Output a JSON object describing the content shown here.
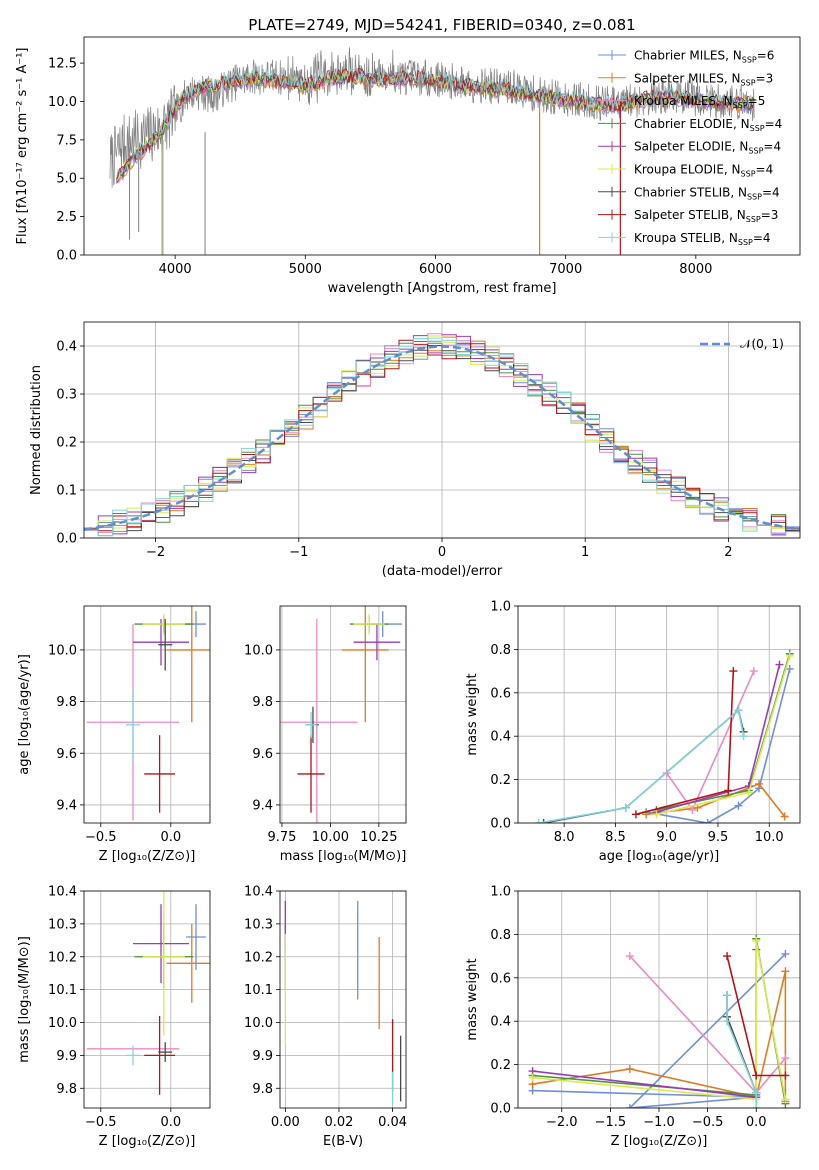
{
  "colors": {
    "Chabrier MILES": "#6f8fd8",
    "Salpeter MILES": "#e07b22",
    "Kroupa MILES": "#ec8ac7",
    "Chabrier ELODIE": "#4d9140",
    "Salpeter ELODIE": "#9b3cb4",
    "Kroupa ELODIE": "#d8eb4c",
    "Chabrier STELIB": "#4b4b4b",
    "Salpeter STELIB": "#b31515",
    "Kroupa STELIB": "#7fd6dc",
    "normal": "#5b8fd6"
  },
  "chart_data": [
    {
      "id": "spectrum",
      "type": "line",
      "title": "PLATE=2749, MJD=54241, FIBERID=0340, z=0.081",
      "xlabel": "wavelength [Angstrom, rest frame]",
      "ylabel": "Flux [fλ10⁻¹⁷ erg cm⁻² s⁻¹ A⁻¹]",
      "xlim": [
        3300,
        8800
      ],
      "ylim": [
        0,
        14.2
      ],
      "xticks": [
        4000,
        5000,
        6000,
        7000,
        8000
      ],
      "yticks": [
        0.0,
        2.5,
        5.0,
        7.5,
        10.0,
        12.5
      ],
      "legend": [
        {
          "model": "Chabrier MILES",
          "n": "6"
        },
        {
          "model": "Salpeter MILES",
          "n": "3"
        },
        {
          "model": "Kroupa MILES",
          "n": "5"
        },
        {
          "model": "Chabrier ELODIE",
          "n": "4"
        },
        {
          "model": "Salpeter ELODIE",
          "n": "4"
        },
        {
          "model": "Kroupa ELODIE",
          "n": "4"
        },
        {
          "model": "Chabrier STELIB",
          "n": "4"
        },
        {
          "model": "Salpeter STELIB",
          "n": "3"
        },
        {
          "model": "Kroupa STELIB",
          "n": "4"
        }
      ],
      "data_continuum": [
        [
          3500,
          6.0
        ],
        [
          3600,
          7.2
        ],
        [
          3700,
          7.5
        ],
        [
          3800,
          7.8
        ],
        [
          3900,
          8.2
        ],
        [
          4000,
          9.2
        ],
        [
          4100,
          10.6
        ],
        [
          4200,
          10.6
        ],
        [
          4300,
          10.4
        ],
        [
          4400,
          11.0
        ],
        [
          4500,
          11.4
        ],
        [
          4600,
          11.6
        ],
        [
          4800,
          11.6
        ],
        [
          5000,
          11.2
        ],
        [
          5200,
          11.6
        ],
        [
          5400,
          11.8
        ],
        [
          5600,
          11.6
        ],
        [
          5800,
          11.6
        ],
        [
          6000,
          11.5
        ],
        [
          6200,
          11.2
        ],
        [
          6400,
          11.0
        ],
        [
          6600,
          10.9
        ],
        [
          6800,
          10.4
        ],
        [
          7000,
          10.2
        ],
        [
          7200,
          10.0
        ],
        [
          7400,
          9.8
        ],
        [
          7600,
          10.2
        ],
        [
          7800,
          10.4
        ],
        [
          8000,
          10.2
        ],
        [
          8200,
          10.0
        ],
        [
          8400,
          9.9
        ]
      ],
      "model_continuum": [
        [
          3550,
          5.0
        ],
        [
          3700,
          6.5
        ],
        [
          3850,
          7.6
        ],
        [
          3950,
          8.8
        ],
        [
          4050,
          10.2
        ],
        [
          4200,
          10.9
        ],
        [
          4400,
          11.2
        ],
        [
          4600,
          11.5
        ],
        [
          4800,
          11.4
        ],
        [
          5000,
          11.0
        ],
        [
          5200,
          11.5
        ],
        [
          5400,
          11.6
        ],
        [
          5600,
          11.4
        ],
        [
          5800,
          11.5
        ],
        [
          6000,
          11.3
        ],
        [
          6200,
          11.0
        ],
        [
          6400,
          10.9
        ],
        [
          6600,
          10.7
        ],
        [
          6800,
          10.3
        ],
        [
          7000,
          10.1
        ],
        [
          7200,
          9.8
        ],
        [
          7400,
          9.7
        ],
        [
          7600,
          10.1
        ],
        [
          7800,
          10.3
        ],
        [
          8000,
          10.1
        ],
        [
          8200,
          9.9
        ],
        [
          8400,
          9.8
        ]
      ]
    },
    {
      "id": "residuals",
      "type": "line",
      "xlabel": "(data-model)/error",
      "ylabel": "Normed distribution",
      "xlim": [
        -2.5,
        2.5
      ],
      "ylim": [
        0,
        0.45
      ],
      "xticks": [
        -2,
        -1,
        0,
        1,
        2
      ],
      "yticks": [
        0.0,
        0.1,
        0.2,
        0.3,
        0.4
      ],
      "legend": "𝒩(0, 1)",
      "histogram_bins": [
        -2.5,
        2.5,
        50
      ]
    },
    {
      "id": "z-age",
      "type": "scatter",
      "xlabel": "Z [log₁₀(Z/Z⊙)]",
      "ylabel": "age  [log₁₀(age/yr)]",
      "xlim": [
        -0.62,
        0.28
      ],
      "ylim": [
        9.33,
        10.17
      ],
      "xticks": [
        -0.5,
        0.0
      ],
      "yticks": [
        9.4,
        9.6,
        9.8,
        10.0
      ],
      "points": [
        {
          "model": "Chabrier MILES",
          "x": 0.18,
          "y": 10.1,
          "xerr": 0.07,
          "yerr": 0.05
        },
        {
          "model": "Salpeter MILES",
          "x": 0.15,
          "y": 10.0,
          "xerr": 0.18,
          "yerr": 0.28
        },
        {
          "model": "Kroupa MILES",
          "x": -0.27,
          "y": 9.72,
          "xerr": 0.33,
          "yerr": 0.38
        },
        {
          "model": "Chabrier ELODIE",
          "x": -0.05,
          "y": 10.1,
          "xerr": 0.21,
          "yerr": 0.03
        },
        {
          "model": "Salpeter ELODIE",
          "x": -0.07,
          "y": 10.03,
          "xerr": 0.2,
          "yerr": 0.09
        },
        {
          "model": "Kroupa ELODIE",
          "x": -0.05,
          "y": 10.1,
          "xerr": 0.15,
          "yerr": 0.04
        },
        {
          "model": "Chabrier STELIB",
          "x": -0.04,
          "y": 10.02,
          "xerr": 0.05,
          "yerr": 0.1
        },
        {
          "model": "Salpeter STELIB",
          "x": -0.08,
          "y": 9.52,
          "xerr": 0.11,
          "yerr": 0.15
        },
        {
          "model": "Kroupa STELIB",
          "x": -0.27,
          "y": 9.71,
          "xerr": 0.05,
          "yerr": 0.14
        }
      ]
    },
    {
      "id": "mass-age",
      "type": "scatter",
      "xlabel": "mass [log₁₀(M/M⊙)]",
      "ylabel": "",
      "xlim": [
        9.74,
        10.39
      ],
      "ylim": [
        9.33,
        10.17
      ],
      "xticks": [
        9.75,
        10.0,
        10.25
      ],
      "yticks": [
        9.4,
        9.6,
        9.8,
        10.0
      ],
      "points": [
        {
          "model": "Chabrier MILES",
          "x": 10.27,
          "y": 10.1,
          "xerr": 0.1,
          "yerr": 0.05
        },
        {
          "model": "Salpeter MILES",
          "x": 10.18,
          "y": 10.0,
          "xerr": 0.12,
          "yerr": 0.28
        },
        {
          "model": "Kroupa MILES",
          "x": 9.93,
          "y": 9.72,
          "xerr": 0.21,
          "yerr": 0.4
        },
        {
          "model": "Chabrier ELODIE",
          "x": 10.2,
          "y": 10.1,
          "xerr": 0.1,
          "yerr": 0.03
        },
        {
          "model": "Salpeter ELODIE",
          "x": 10.24,
          "y": 10.03,
          "xerr": 0.12,
          "yerr": 0.07
        },
        {
          "model": "Kroupa ELODIE",
          "x": 10.2,
          "y": 10.1,
          "xerr": 0.08,
          "yerr": 0.04
        },
        {
          "model": "Chabrier STELIB",
          "x": 9.91,
          "y": 9.71,
          "xerr": 0.03,
          "yerr": 0.07
        },
        {
          "model": "Salpeter STELIB",
          "x": 9.9,
          "y": 9.52,
          "xerr": 0.07,
          "yerr": 0.15
        },
        {
          "model": "Kroupa STELIB",
          "x": 9.9,
          "y": 9.71,
          "xerr": 0.03,
          "yerr": 0.05
        }
      ]
    },
    {
      "id": "age-weight",
      "type": "line",
      "xlabel": "age  [log₁₀(age/yr)]",
      "ylabel": "mass weight",
      "xlim": [
        7.55,
        10.3
      ],
      "ylim": [
        0.0,
        1.0
      ],
      "xticks": [
        8.0,
        8.5,
        9.0,
        9.5,
        10.0
      ],
      "yticks": [
        0.0,
        0.2,
        0.4,
        0.6,
        0.8,
        1.0
      ],
      "series": [
        {
          "model": "Chabrier MILES",
          "x": [
            8.8,
            9.4,
            9.7,
            9.9,
            10.2
          ],
          "y": [
            0.05,
            0.0,
            0.08,
            0.16,
            0.71
          ]
        },
        {
          "model": "Salpeter MILES",
          "x": [
            8.8,
            9.3,
            9.9,
            10.15
          ],
          "y": [
            0.04,
            0.07,
            0.18,
            0.03
          ]
        },
        {
          "model": "Kroupa MILES",
          "x": [
            9.0,
            9.25,
            9.85
          ],
          "y": [
            0.23,
            0.06,
            0.7
          ]
        },
        {
          "model": "Chabrier ELODIE",
          "x": [
            8.9,
            9.8,
            10.2
          ],
          "y": [
            0.06,
            0.15,
            0.78
          ]
        },
        {
          "model": "Salpeter ELODIE",
          "x": [
            8.9,
            9.8,
            10.1
          ],
          "y": [
            0.05,
            0.17,
            0.73
          ]
        },
        {
          "model": "Kroupa ELODIE",
          "x": [
            8.9,
            9.8,
            10.2
          ],
          "y": [
            0.04,
            0.14,
            0.77
          ]
        },
        {
          "model": "Chabrier STELIB",
          "x": [
            7.8,
            8.6,
            9.7,
            9.75
          ],
          "y": [
            0.0,
            0.07,
            0.52,
            0.42
          ]
        },
        {
          "model": "Salpeter STELIB",
          "x": [
            8.7,
            9.6,
            9.65
          ],
          "y": [
            0.04,
            0.15,
            0.7
          ]
        },
        {
          "model": "Kroupa STELIB",
          "x": [
            7.75,
            8.6,
            9.7,
            9.75
          ],
          "y": [
            0.0,
            0.07,
            0.52,
            0.4
          ]
        }
      ]
    },
    {
      "id": "z-mass",
      "type": "scatter",
      "xlabel": "Z [log₁₀(Z/Z⊙)]",
      "ylabel": "mass [log₁₀(M/M⊙)]",
      "xlim": [
        -0.62,
        0.28
      ],
      "ylim": [
        9.74,
        10.4
      ],
      "xticks": [
        -0.5,
        0.0
      ],
      "yticks": [
        9.8,
        9.9,
        10.0,
        10.1,
        10.2,
        10.3,
        10.4
      ],
      "points": [
        {
          "model": "Chabrier MILES",
          "x": 0.18,
          "y": 10.26,
          "xerr": 0.07,
          "yerr": 0.1
        },
        {
          "model": "Salpeter MILES",
          "x": 0.15,
          "y": 10.18,
          "xerr": 0.18,
          "yerr": 0.12
        },
        {
          "model": "Kroupa MILES",
          "x": -0.27,
          "y": 9.92,
          "xerr": 0.33,
          "yerr": 0.0
        },
        {
          "model": "Chabrier ELODIE",
          "x": -0.05,
          "y": 10.2,
          "xerr": 0.21,
          "yerr": 0.1
        },
        {
          "model": "Salpeter ELODIE",
          "x": -0.07,
          "y": 10.24,
          "xerr": 0.2,
          "yerr": 0.12
        },
        {
          "model": "Kroupa ELODIE",
          "x": -0.05,
          "y": 10.2,
          "xerr": 0.15,
          "yerr": 0.24
        },
        {
          "model": "Chabrier STELIB",
          "x": -0.04,
          "y": 9.91,
          "xerr": 0.05,
          "yerr": 0.03
        },
        {
          "model": "Salpeter STELIB",
          "x": -0.08,
          "y": 9.9,
          "xerr": 0.11,
          "yerr": 0.12
        },
        {
          "model": "Kroupa STELIB",
          "x": -0.27,
          "y": 9.9,
          "xerr": 0.05,
          "yerr": 0.03
        }
      ]
    },
    {
      "id": "ebv-mass",
      "type": "scatter",
      "xlabel": "E(B-V)",
      "ylabel": "",
      "xlim": [
        -0.002,
        0.045
      ],
      "ylim": [
        9.74,
        10.4
      ],
      "xticks": [
        0.0,
        0.02,
        0.04
      ],
      "yticks": [
        9.8,
        9.9,
        10.0,
        10.1,
        10.2,
        10.3,
        10.4
      ],
      "points": [
        {
          "model": "Chabrier MILES",
          "x": 0.027,
          "y": 10.22,
          "xerr": 0,
          "yerr": 0.15
        },
        {
          "model": "Salpeter MILES",
          "x": 0.035,
          "y": 10.12,
          "xerr": 0,
          "yerr": 0.14
        },
        {
          "model": "Kroupa MILES",
          "x": 0.0,
          "y": 10.28,
          "xerr": 0,
          "yerr": 0.09
        },
        {
          "model": "Chabrier ELODIE",
          "x": 0.0,
          "y": 10.2,
          "xerr": 0,
          "yerr": 0.1
        },
        {
          "model": "Salpeter ELODIE",
          "x": 0.0,
          "y": 10.3,
          "xerr": 0,
          "yerr": 0.07
        },
        {
          "model": "Kroupa ELODIE",
          "x": 0.0,
          "y": 10.1,
          "xerr": 0,
          "yerr": 0.17
        },
        {
          "model": "Chabrier STELIB",
          "x": 0.043,
          "y": 9.86,
          "xerr": 0,
          "yerr": 0.1
        },
        {
          "model": "Salpeter STELIB",
          "x": 0.04,
          "y": 9.9,
          "xerr": 0,
          "yerr": 0.11
        },
        {
          "model": "Kroupa STELIB",
          "x": 0.04,
          "y": 9.8,
          "xerr": 0,
          "yerr": 0.05
        }
      ]
    },
    {
      "id": "z-weight",
      "type": "line",
      "xlabel": "Z [log₁₀(Z/Z⊙)]",
      "ylabel": "mass weight",
      "xlim": [
        -2.45,
        0.45
      ],
      "ylim": [
        0.0,
        1.0
      ],
      "xticks": [
        -2.0,
        -1.5,
        -1.0,
        -0.5,
        0.0
      ],
      "yticks": [
        0.0,
        0.2,
        0.4,
        0.6,
        0.8,
        1.0
      ],
      "series": [
        {
          "model": "Chabrier MILES",
          "x": [
            -2.3,
            0.0,
            -1.3,
            0.3
          ],
          "y": [
            0.08,
            0.05,
            0.0,
            0.71
          ]
        },
        {
          "model": "Salpeter MILES",
          "x": [
            -2.3,
            -1.3,
            0.0,
            0.3,
            0.3
          ],
          "y": [
            0.11,
            0.18,
            0.05,
            0.63,
            0.03
          ]
        },
        {
          "model": "Kroupa MILES",
          "x": [
            -1.3,
            0.0,
            0.3
          ],
          "y": [
            0.7,
            0.07,
            0.23
          ]
        },
        {
          "model": "Chabrier ELODIE",
          "x": [
            -2.3,
            0.0,
            0.0,
            0.3
          ],
          "y": [
            0.15,
            0.06,
            0.78,
            0.02
          ]
        },
        {
          "model": "Salpeter ELODIE",
          "x": [
            -2.3,
            0.0,
            0.0
          ],
          "y": [
            0.17,
            0.05,
            0.73
          ]
        },
        {
          "model": "Kroupa ELODIE",
          "x": [
            -2.3,
            0.0,
            0.0,
            0.3
          ],
          "y": [
            0.14,
            0.04,
            0.77,
            0.04
          ]
        },
        {
          "model": "Chabrier STELIB",
          "x": [
            -0.3,
            -0.3,
            0.0
          ],
          "y": [
            0.52,
            0.42,
            0.07
          ]
        },
        {
          "model": "Salpeter STELIB",
          "x": [
            -0.3,
            0.0,
            0.3
          ],
          "y": [
            0.7,
            0.15,
            0.15
          ]
        },
        {
          "model": "Kroupa STELIB",
          "x": [
            -0.3,
            -0.3,
            0.0,
            0.0
          ],
          "y": [
            0.52,
            0.4,
            0.07,
            0.0
          ]
        }
      ]
    }
  ]
}
